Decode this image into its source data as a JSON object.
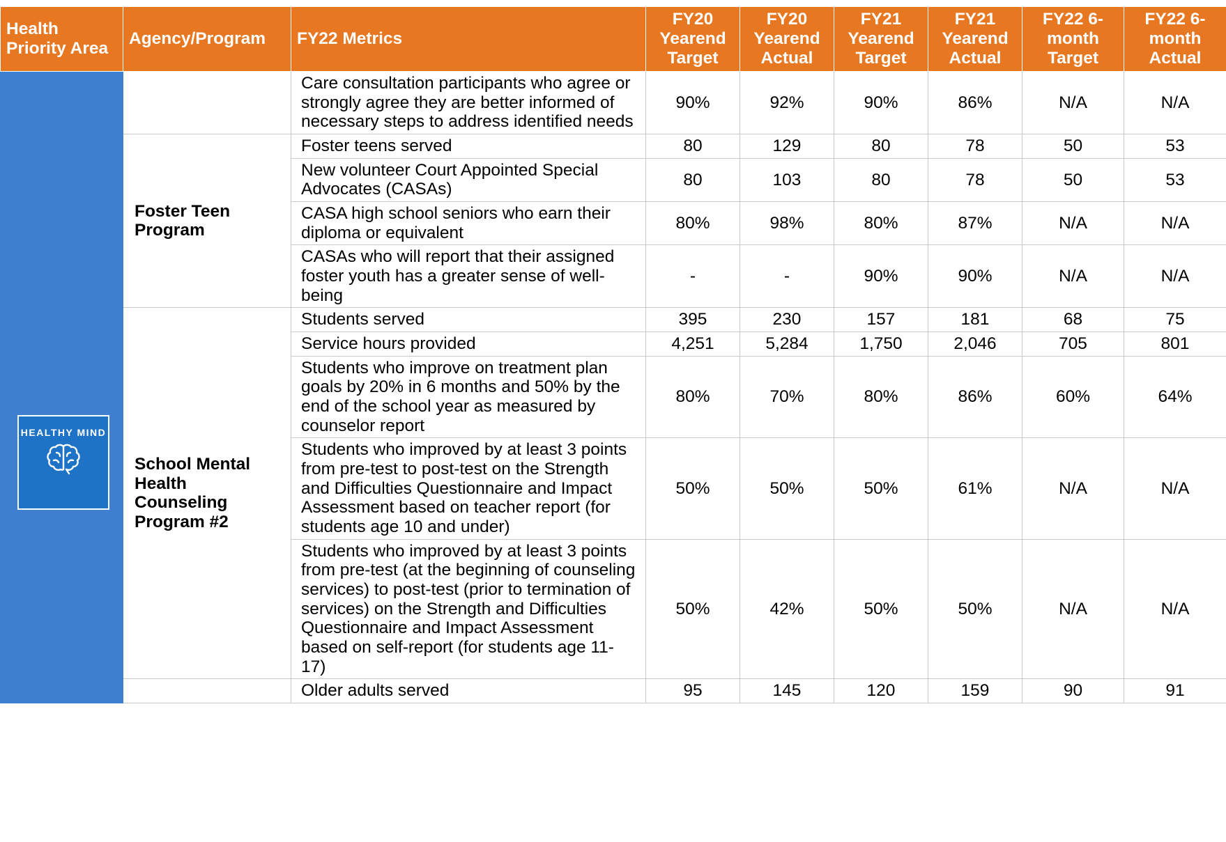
{
  "header": [
    "Health Priority Area",
    "Agency/Program",
    "FY22 Metrics",
    "FY20 Yearend Target",
    "FY20 Yearend Actual",
    "FY21 Yearend Target",
    "FY21 Yearend Actual",
    "FY22 6-month Target",
    "FY22 6-month Actual"
  ],
  "icon": {
    "label": "HEALTHY MIND"
  },
  "groups": [
    {
      "rows": [
        [
          "Care consultation participants who agree or strongly agree they are better informed of necessary steps to address identified needs",
          "90%",
          "92%",
          "90%",
          "86%",
          "N/A",
          "N/A"
        ]
      ]
    },
    {
      "program": "Foster Teen Program",
      "rows": [
        [
          "Foster teens served",
          "80",
          "129",
          "80",
          "78",
          "50",
          "53"
        ],
        [
          "New volunteer Court Appointed Special Advocates (CASAs)",
          "80",
          "103",
          "80",
          "78",
          "50",
          "53"
        ],
        [
          "CASA high school seniors who earn their diploma or equivalent",
          "80%",
          "98%",
          "80%",
          "87%",
          "N/A",
          "N/A"
        ],
        [
          "CASAs who will report that their assigned foster youth has a greater sense of well-being",
          "-",
          "-",
          "90%",
          "90%",
          "N/A",
          "N/A"
        ]
      ]
    },
    {
      "program": "School Mental Health Counseling Program #2",
      "rows": [
        [
          "Students served",
          "395",
          "230",
          "157",
          "181",
          "68",
          "75"
        ],
        [
          "Service hours provided",
          "4,251",
          "5,284",
          "1,750",
          "2,046",
          "705",
          "801"
        ],
        [
          "Students who improve on treatment plan goals by 20% in 6 months and 50% by the end of the school year as measured by counselor report",
          "80%",
          "70%",
          "80%",
          "86%",
          "60%",
          "64%"
        ],
        [
          "Students who improved by at least 3 points from pre-test to post-test on the Strength and Difficulties Questionnaire and Impact Assessment based on teacher report (for students age 10 and under)",
          "50%",
          "50%",
          "50%",
          "61%",
          "N/A",
          "N/A"
        ],
        [
          "Students who improved by at least 3 points from pre-test (at the beginning of counseling services) to post-test (prior to termination of services) on the Strength and Difficulties Questionnaire and Impact Assessment based on self-report (for students age 11-17)",
          "50%",
          "42%",
          "50%",
          "50%",
          "N/A",
          "N/A"
        ]
      ]
    },
    {
      "rows": [
        [
          "Older adults served",
          "95",
          "145",
          "120",
          "159",
          "90",
          "91"
        ]
      ]
    }
  ]
}
